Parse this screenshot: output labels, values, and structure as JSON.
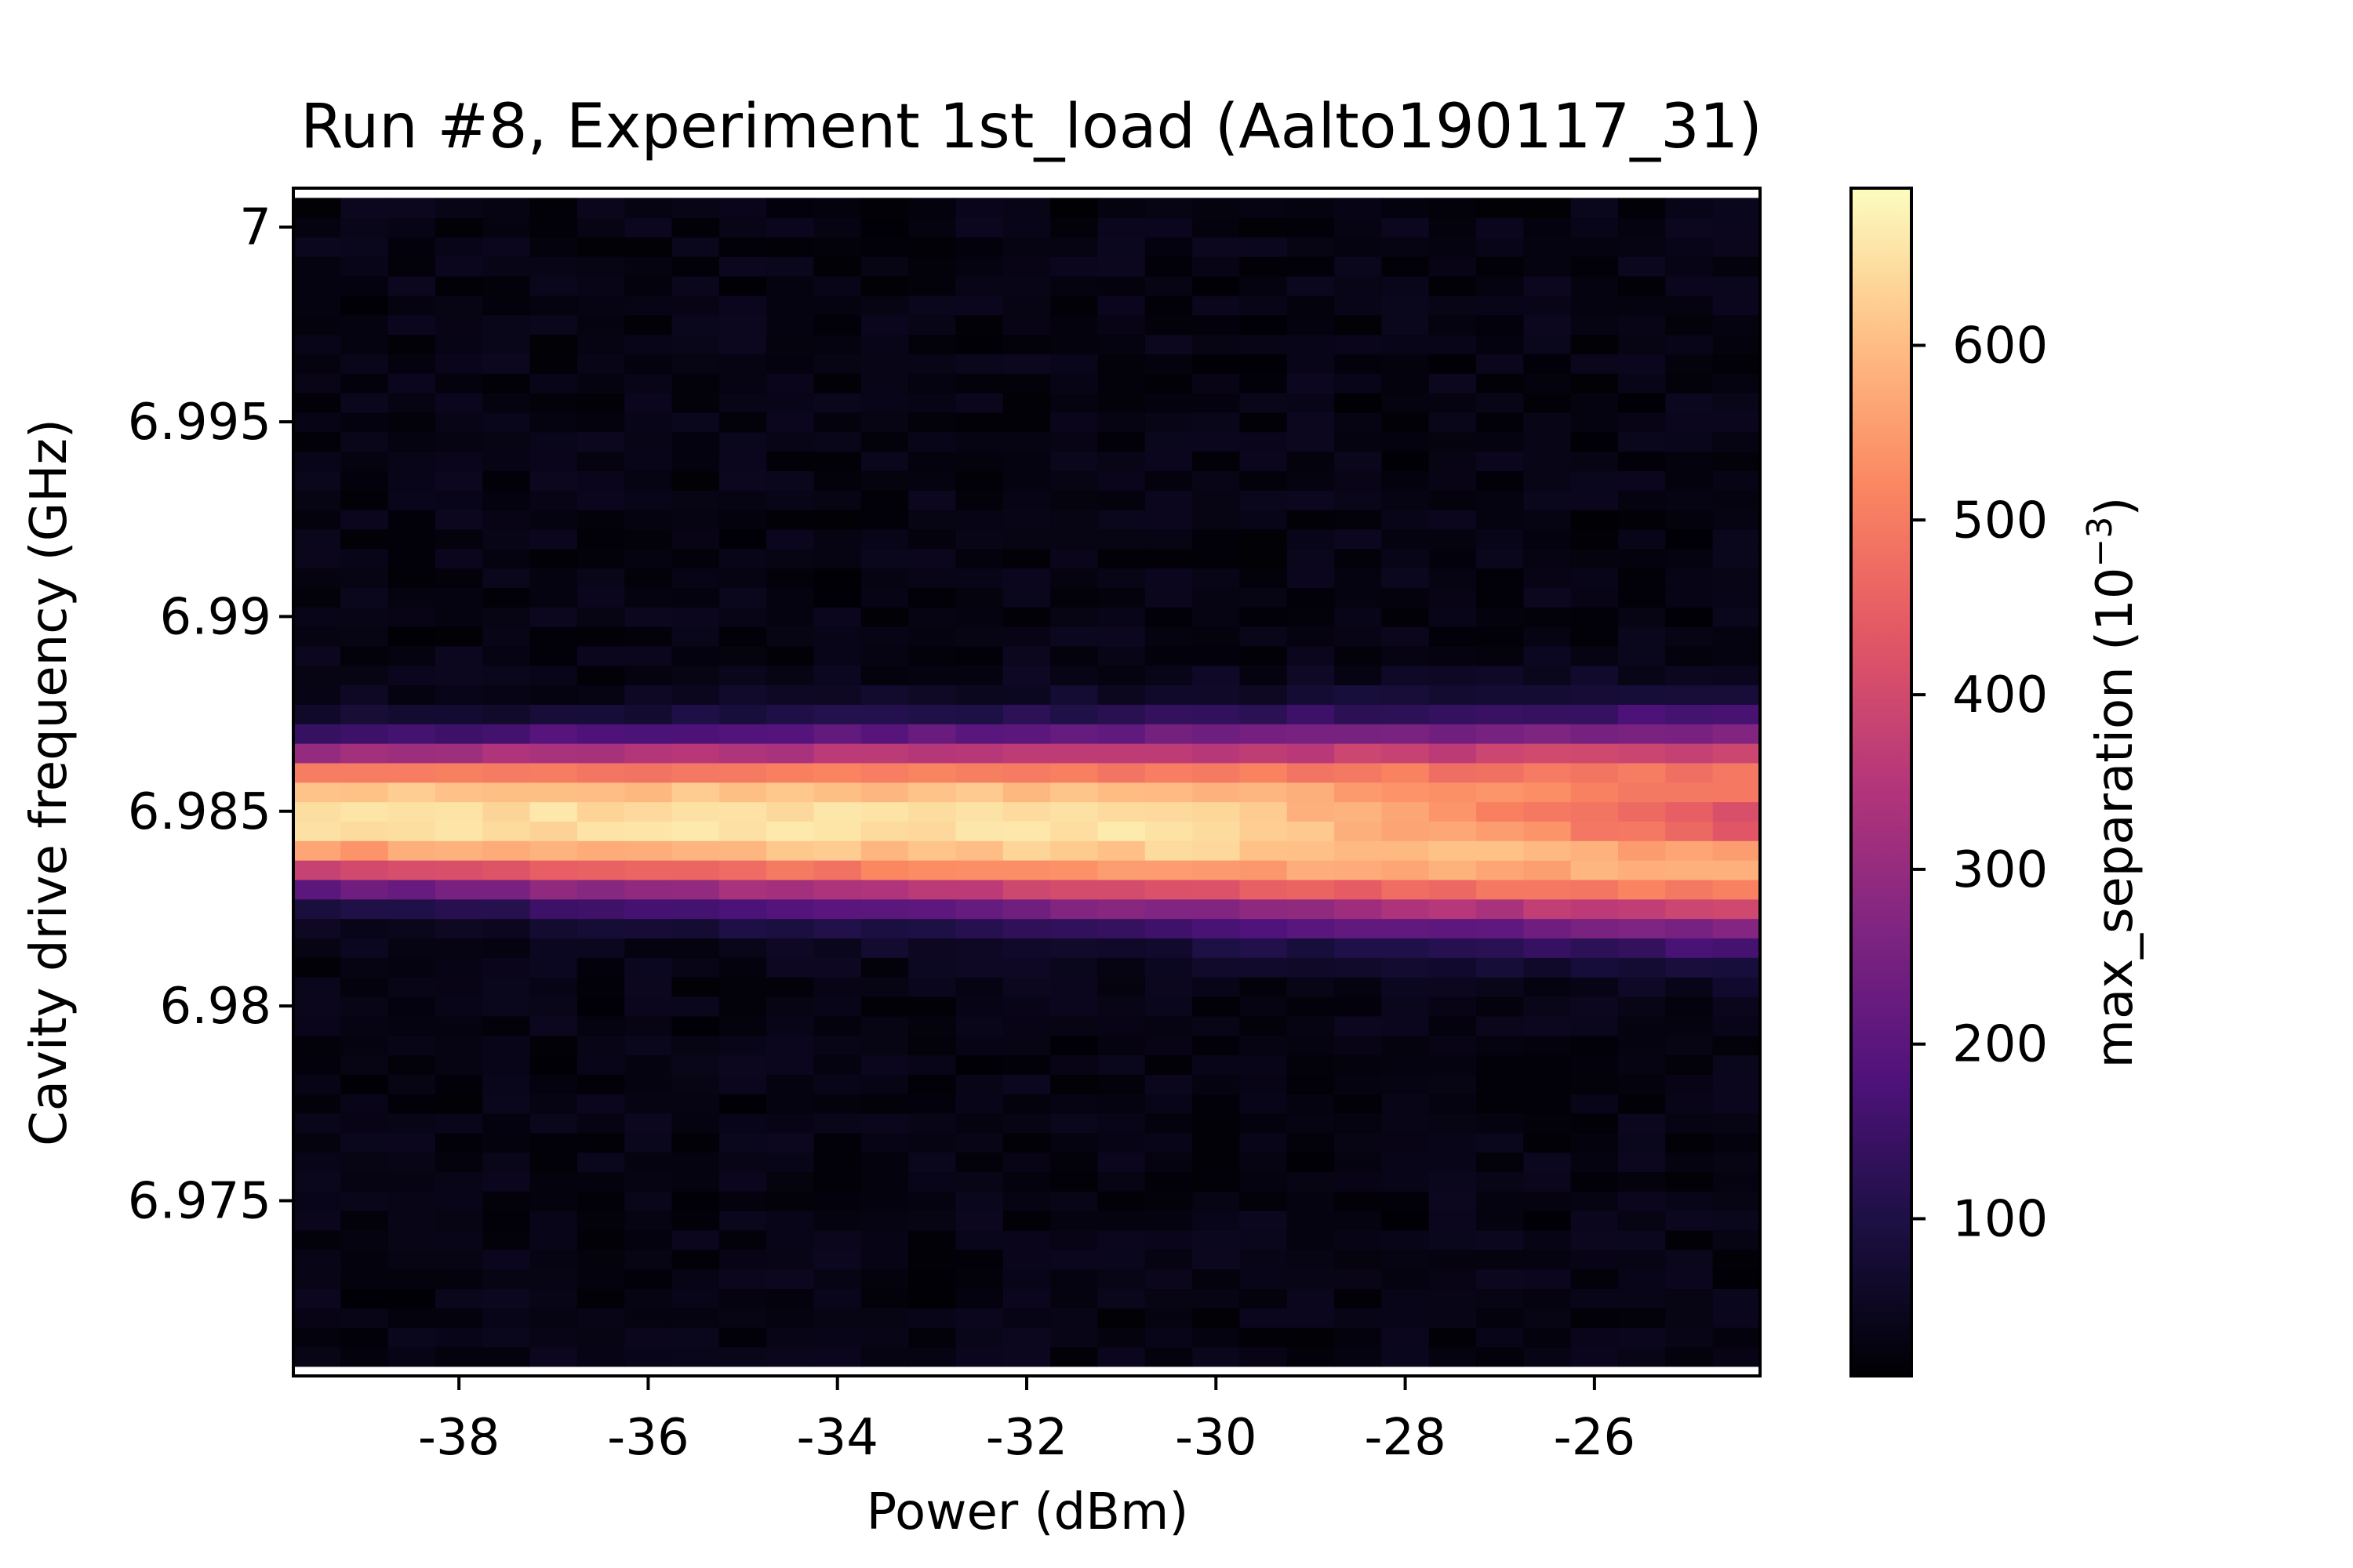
{
  "chart_data": {
    "type": "heatmap",
    "title": "Run #8, Experiment 1st_load (Aalto190117_31)",
    "xlabel": "Power (dBm)",
    "ylabel": "Cavity drive frequency (GHz)",
    "colorbar_label": "max_separation (10",
    "colorbar_label_exponent": "−3",
    "colorbar_label_close": ")",
    "colormap": "magma",
    "xlim": [
      -39.75,
      -24.25
    ],
    "ylim": [
      6.9705,
      7.001
    ],
    "clim": [
      10,
      690
    ],
    "x_ticks": [
      {
        "value": -38,
        "label": "-38"
      },
      {
        "value": -36,
        "label": "-36"
      },
      {
        "value": -34,
        "label": "-34"
      },
      {
        "value": -32,
        "label": "-32"
      },
      {
        "value": -30,
        "label": "-30"
      },
      {
        "value": -28,
        "label": "-28"
      },
      {
        "value": -26,
        "label": "-26"
      }
    ],
    "y_ticks": [
      {
        "value": 7.0,
        "label": "7"
      },
      {
        "value": 6.995,
        "label": "6.995"
      },
      {
        "value": 6.99,
        "label": "6.99"
      },
      {
        "value": 6.985,
        "label": "6.985"
      },
      {
        "value": 6.98,
        "label": "6.98"
      },
      {
        "value": 6.975,
        "label": "6.975"
      }
    ],
    "colorbar_ticks": [
      {
        "value": 100,
        "label": "100"
      },
      {
        "value": 200,
        "label": "200"
      },
      {
        "value": 300,
        "label": "300"
      },
      {
        "value": 400,
        "label": "400"
      },
      {
        "value": 500,
        "label": "500"
      },
      {
        "value": 600,
        "label": "600"
      }
    ],
    "power_start_dBm": -39.5,
    "power_step_dBm": 0.5,
    "power_count": 31,
    "frequency_start_GHz": 6.971,
    "frequency_step_GHz": 0.0005,
    "frequency_count": 60,
    "model": {
      "peak_max": 650,
      "background": 30,
      "center_GHz_at_low_power": 6.9849,
      "center_GHz_at_high_power": 6.9845,
      "sigma_GHz_at_low_power": 0.00175,
      "sigma_GHz_at_high_power": 0.00255,
      "high_power_dip_depth": 0.35,
      "high_power_dip_offset_GHz": 0.0003,
      "noise_amplitude": 18
    }
  }
}
